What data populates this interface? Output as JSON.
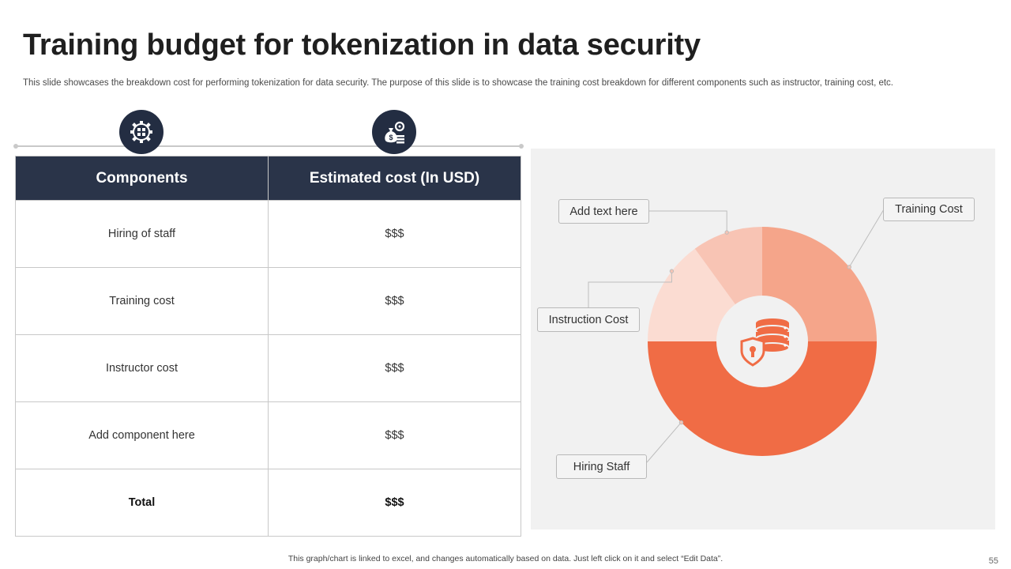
{
  "header": {
    "title": "Training budget for tokenization in data security",
    "subtitle": "This slide showcases the breakdown cost for performing tokenization for data security. The purpose of this slide is to showcase the training cost breakdown for different components such as instructor, training cost, etc."
  },
  "icons": {
    "left": "puzzle-gear-icon",
    "right": "money-bag-gear-icon",
    "center": "database-shield-icon"
  },
  "table": {
    "headers": [
      "Components",
      "Estimated cost (In USD)"
    ],
    "rows": [
      {
        "component": "Hiring of staff",
        "cost": "$$$"
      },
      {
        "component": "Training cost",
        "cost": "$$$"
      },
      {
        "component": "Instructor cost",
        "cost": "$$$"
      },
      {
        "component": "Add component here",
        "cost": "$$$"
      }
    ],
    "total": {
      "component": "Total",
      "cost": "$$$"
    }
  },
  "chart_data": {
    "type": "pie",
    "title": "",
    "donut": true,
    "categories": [
      "Training Cost",
      "Hiring Staff",
      "Instruction Cost",
      "Add text here"
    ],
    "values": [
      25,
      50,
      15,
      10
    ],
    "colors": [
      "#f5a58a",
      "#f06c45",
      "#fbdcd2",
      "#f8c4b4"
    ],
    "start_angle_deg": 0,
    "legend": "callouts"
  },
  "colors": {
    "header_bg": "#2a3449",
    "icon_bg": "#232d42",
    "accent": "#f06c45",
    "panel_bg": "#f1f1f1"
  },
  "footer": {
    "note": "This graph/chart is linked to excel, and changes automatically based on data. Just left click on it and select “Edit Data”.",
    "page_number": "55"
  }
}
